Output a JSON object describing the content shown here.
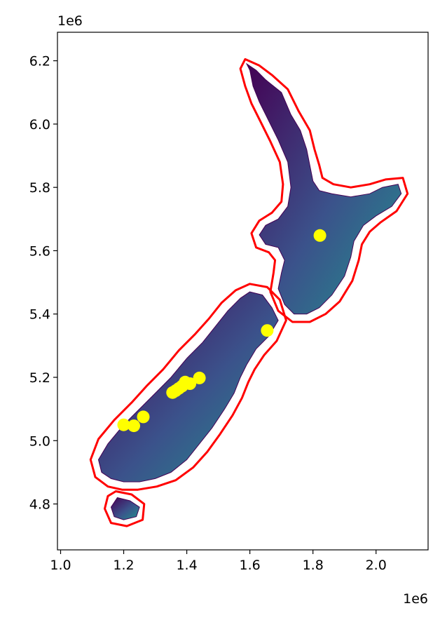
{
  "chart_data": {
    "type": "scatter",
    "title": "",
    "xlabel": "",
    "ylabel": "",
    "x_scale_label": "1e6",
    "y_scale_label": "1e6",
    "xlim": [
      0.99,
      2.165
    ],
    "ylim": [
      4.655,
      6.29
    ],
    "x_ticks": [
      1.0,
      1.2,
      1.4,
      1.6,
      1.8,
      2.0
    ],
    "x_tick_labels": [
      "1.0",
      "1.2",
      "1.4",
      "1.6",
      "1.8",
      "2.0"
    ],
    "y_ticks": [
      4.8,
      5.0,
      5.2,
      5.4,
      5.6,
      5.8,
      6.0,
      6.2
    ],
    "y_tick_labels": [
      "4.8",
      "5.0",
      "5.2",
      "5.4",
      "5.6",
      "5.8",
      "6.0",
      "6.2"
    ],
    "grid": false,
    "legend": "none",
    "layers": [
      {
        "kind": "raster",
        "description": "elevation",
        "colormap": "viridis"
      },
      {
        "kind": "buffer-outline",
        "color": "#ff0000"
      },
      {
        "kind": "points",
        "color": "#ffff00"
      }
    ],
    "colors": {
      "raster_low": "#440154",
      "raster_mid": "#3b528b",
      "raster_high": "#21918c",
      "buffer": "#ff0000",
      "points": "#ffff00"
    },
    "points": [
      {
        "x": 1.822,
        "y": 5.648
      },
      {
        "x": 1.655,
        "y": 5.348
      },
      {
        "x": 1.44,
        "y": 5.198
      },
      {
        "x": 1.41,
        "y": 5.18
      },
      {
        "x": 1.395,
        "y": 5.185
      },
      {
        "x": 1.385,
        "y": 5.172
      },
      {
        "x": 1.375,
        "y": 5.165
      },
      {
        "x": 1.365,
        "y": 5.158
      },
      {
        "x": 1.355,
        "y": 5.152
      },
      {
        "x": 1.262,
        "y": 5.075
      },
      {
        "x": 1.232,
        "y": 5.047
      },
      {
        "x": 1.2,
        "y": 5.05
      }
    ],
    "north_island": [
      [
        1.59,
        6.19
      ],
      [
        1.62,
        6.17
      ],
      [
        1.65,
        6.14
      ],
      [
        1.7,
        6.1
      ],
      [
        1.73,
        6.03
      ],
      [
        1.76,
        5.98
      ],
      [
        1.78,
        5.92
      ],
      [
        1.79,
        5.87
      ],
      [
        1.8,
        5.82
      ],
      [
        1.82,
        5.79
      ],
      [
        1.86,
        5.78
      ],
      [
        1.92,
        5.77
      ],
      [
        1.98,
        5.78
      ],
      [
        2.02,
        5.8
      ],
      [
        2.07,
        5.81
      ],
      [
        2.08,
        5.78
      ],
      [
        2.05,
        5.74
      ],
      [
        2.0,
        5.71
      ],
      [
        1.96,
        5.68
      ],
      [
        1.93,
        5.63
      ],
      [
        1.92,
        5.58
      ],
      [
        1.9,
        5.52
      ],
      [
        1.86,
        5.46
      ],
      [
        1.82,
        5.42
      ],
      [
        1.78,
        5.4
      ],
      [
        1.74,
        5.4
      ],
      [
        1.71,
        5.43
      ],
      [
        1.69,
        5.48
      ],
      [
        1.7,
        5.53
      ],
      [
        1.71,
        5.57
      ],
      [
        1.69,
        5.61
      ],
      [
        1.65,
        5.62
      ],
      [
        1.63,
        5.65
      ],
      [
        1.65,
        5.68
      ],
      [
        1.69,
        5.7
      ],
      [
        1.72,
        5.74
      ],
      [
        1.73,
        5.8
      ],
      [
        1.72,
        5.88
      ],
      [
        1.69,
        5.95
      ],
      [
        1.66,
        6.01
      ],
      [
        1.63,
        6.07
      ],
      [
        1.61,
        6.12
      ],
      [
        1.6,
        6.17
      ]
    ],
    "south_island": [
      [
        1.6,
        5.47
      ],
      [
        1.64,
        5.46
      ],
      [
        1.67,
        5.42
      ],
      [
        1.69,
        5.38
      ],
      [
        1.66,
        5.33
      ],
      [
        1.62,
        5.29
      ],
      [
        1.59,
        5.24
      ],
      [
        1.57,
        5.2
      ],
      [
        1.55,
        5.15
      ],
      [
        1.52,
        5.1
      ],
      [
        1.48,
        5.04
      ],
      [
        1.44,
        4.99
      ],
      [
        1.4,
        4.94
      ],
      [
        1.35,
        4.9
      ],
      [
        1.3,
        4.88
      ],
      [
        1.25,
        4.87
      ],
      [
        1.2,
        4.87
      ],
      [
        1.16,
        4.88
      ],
      [
        1.13,
        4.9
      ],
      [
        1.12,
        4.94
      ],
      [
        1.15,
        4.99
      ],
      [
        1.2,
        5.05
      ],
      [
        1.25,
        5.1
      ],
      [
        1.3,
        5.15
      ],
      [
        1.35,
        5.2
      ],
      [
        1.4,
        5.26
      ],
      [
        1.45,
        5.31
      ],
      [
        1.49,
        5.36
      ],
      [
        1.53,
        5.41
      ],
      [
        1.57,
        5.45
      ]
    ],
    "stewart_island": [
      [
        1.18,
        4.82
      ],
      [
        1.22,
        4.81
      ],
      [
        1.25,
        4.79
      ],
      [
        1.24,
        4.76
      ],
      [
        1.2,
        4.75
      ],
      [
        1.17,
        4.76
      ],
      [
        1.16,
        4.79
      ]
    ],
    "buffer_north": [
      [
        1.585,
        6.205
      ],
      [
        1.63,
        6.185
      ],
      [
        1.67,
        6.155
      ],
      [
        1.72,
        6.11
      ],
      [
        1.755,
        6.04
      ],
      [
        1.79,
        5.98
      ],
      [
        1.805,
        5.92
      ],
      [
        1.82,
        5.87
      ],
      [
        1.83,
        5.83
      ],
      [
        1.865,
        5.81
      ],
      [
        1.92,
        5.8
      ],
      [
        1.98,
        5.81
      ],
      [
        2.03,
        5.825
      ],
      [
        2.085,
        5.83
      ],
      [
        2.1,
        5.78
      ],
      [
        2.065,
        5.725
      ],
      [
        2.015,
        5.69
      ],
      [
        1.98,
        5.66
      ],
      [
        1.955,
        5.62
      ],
      [
        1.945,
        5.57
      ],
      [
        1.925,
        5.505
      ],
      [
        1.885,
        5.44
      ],
      [
        1.84,
        5.4
      ],
      [
        1.79,
        5.375
      ],
      [
        1.735,
        5.375
      ],
      [
        1.69,
        5.41
      ],
      [
        1.665,
        5.47
      ],
      [
        1.675,
        5.53
      ],
      [
        1.68,
        5.57
      ],
      [
        1.66,
        5.595
      ],
      [
        1.62,
        5.61
      ],
      [
        1.605,
        5.655
      ],
      [
        1.63,
        5.695
      ],
      [
        1.67,
        5.72
      ],
      [
        1.7,
        5.755
      ],
      [
        1.705,
        5.81
      ],
      [
        1.695,
        5.88
      ],
      [
        1.665,
        5.945
      ],
      [
        1.635,
        6.005
      ],
      [
        1.605,
        6.065
      ],
      [
        1.585,
        6.12
      ],
      [
        1.57,
        6.175
      ]
    ],
    "buffer_south": [
      [
        1.6,
        5.495
      ],
      [
        1.655,
        5.485
      ],
      [
        1.695,
        5.445
      ],
      [
        1.715,
        5.38
      ],
      [
        1.685,
        5.315
      ],
      [
        1.645,
        5.27
      ],
      [
        1.615,
        5.225
      ],
      [
        1.595,
        5.185
      ],
      [
        1.575,
        5.135
      ],
      [
        1.545,
        5.08
      ],
      [
        1.505,
        5.02
      ],
      [
        1.465,
        4.965
      ],
      [
        1.42,
        4.915
      ],
      [
        1.365,
        4.875
      ],
      [
        1.305,
        4.855
      ],
      [
        1.245,
        4.845
      ],
      [
        1.195,
        4.845
      ],
      [
        1.15,
        4.855
      ],
      [
        1.11,
        4.885
      ],
      [
        1.095,
        4.94
      ],
      [
        1.12,
        5.005
      ],
      [
        1.17,
        5.065
      ],
      [
        1.225,
        5.12
      ],
      [
        1.275,
        5.175
      ],
      [
        1.325,
        5.225
      ],
      [
        1.375,
        5.285
      ],
      [
        1.425,
        5.335
      ],
      [
        1.47,
        5.385
      ],
      [
        1.51,
        5.435
      ],
      [
        1.555,
        5.475
      ]
    ],
    "buffer_stewart": [
      [
        1.175,
        4.84
      ],
      [
        1.225,
        4.83
      ],
      [
        1.265,
        4.8
      ],
      [
        1.26,
        4.75
      ],
      [
        1.21,
        4.73
      ],
      [
        1.16,
        4.74
      ],
      [
        1.14,
        4.785
      ],
      [
        1.15,
        4.825
      ]
    ]
  }
}
